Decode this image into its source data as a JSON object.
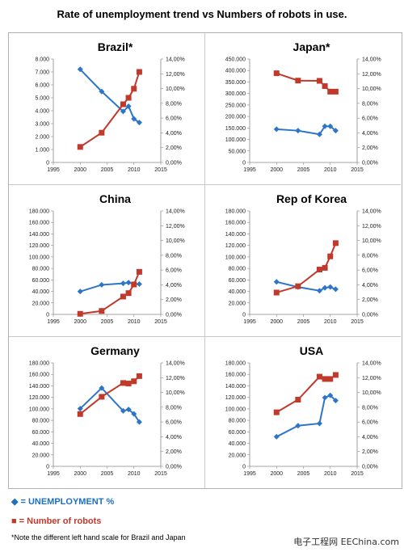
{
  "title": "Rate of unemployment trend vs Numbers of robots in use.",
  "legend": {
    "unemployment_symbol": "◆",
    "unemployment_label": "= UNEMPLOYMENT %",
    "robots_symbol": "■",
    "robots_label": "= Number of robots"
  },
  "footnote": "*Note the different left hand scale for Brazil and Japan",
  "watermark": "电子工程网  EEChina.com",
  "colors": {
    "unemployment": "#2e75c9",
    "robots": "#c0392b"
  },
  "chart_data": [
    {
      "type": "line",
      "title": "Brazil*",
      "x_ticks": [
        "1995",
        "2000",
        "2005",
        "2010",
        "2015"
      ],
      "xlim": [
        1995,
        2015
      ],
      "left_ticks": [
        "0",
        "1.000",
        "2.000",
        "3.000",
        "4.000",
        "5.000",
        "6.000",
        "7.000",
        "8.000"
      ],
      "left_lim": [
        0,
        8000
      ],
      "right_ticks": [
        "0,00%",
        "2,00%",
        "4,00%",
        "6,00%",
        "8,00%",
        "10,00%",
        "12,00%",
        "14,00%"
      ],
      "right_lim": [
        0,
        14
      ],
      "series": [
        {
          "key": "unemployment",
          "axis": "right",
          "x": [
            2000,
            2004,
            2008,
            2009,
            2010,
            2011
          ],
          "y": [
            12.6,
            9.6,
            6.9,
            7.6,
            5.9,
            5.4
          ]
        },
        {
          "key": "robots",
          "axis": "left",
          "x": [
            2000,
            2004,
            2008,
            2009,
            2010,
            2011
          ],
          "y": [
            1200,
            2300,
            4500,
            5000,
            5700,
            7000
          ]
        }
      ]
    },
    {
      "type": "line",
      "title": "Japan*",
      "x_ticks": [
        "1995",
        "2000",
        "2005",
        "2010",
        "2015"
      ],
      "xlim": [
        1995,
        2015
      ],
      "left_ticks": [
        "0",
        "50.000",
        "100.000",
        "150.000",
        "200.000",
        "250.000",
        "300.000",
        "350.000",
        "400.000",
        "450.000"
      ],
      "left_lim": [
        0,
        450000
      ],
      "right_ticks": [
        "0,00%",
        "2,00%",
        "4,00%",
        "6,00%",
        "8,00%",
        "10,00%",
        "12,00%",
        "14,00%"
      ],
      "right_lim": [
        0,
        14
      ],
      "series": [
        {
          "key": "unemployment",
          "axis": "right",
          "x": [
            2000,
            2004,
            2008,
            2009,
            2010,
            2011
          ],
          "y": [
            4.5,
            4.3,
            3.8,
            4.9,
            4.9,
            4.3
          ]
        },
        {
          "key": "robots",
          "axis": "left",
          "x": [
            2000,
            2004,
            2008,
            2009,
            2010,
            2011
          ],
          "y": [
            388000,
            356000,
            355000,
            332000,
            308000,
            308000
          ]
        }
      ]
    },
    {
      "type": "line",
      "title": "China",
      "x_ticks": [
        "1995",
        "2000",
        "2005",
        "2010",
        "2015"
      ],
      "xlim": [
        1995,
        2015
      ],
      "left_ticks": [
        "0",
        "20.000",
        "40.000",
        "60.000",
        "80.000",
        "100.000",
        "120.000",
        "140.000",
        "160.000",
        "180.000"
      ],
      "left_lim": [
        0,
        180000
      ],
      "right_ticks": [
        "0,00%",
        "2,00%",
        "4,00%",
        "6,00%",
        "8,00%",
        "10,00%",
        "12,00%",
        "14,00%"
      ],
      "right_lim": [
        0,
        14
      ],
      "series": [
        {
          "key": "unemployment",
          "axis": "right",
          "x": [
            2000,
            2004,
            2008,
            2009,
            2010,
            2011
          ],
          "y": [
            3.1,
            4.0,
            4.2,
            4.3,
            4.1,
            4.1
          ]
        },
        {
          "key": "robots",
          "axis": "left",
          "x": [
            2000,
            2004,
            2008,
            2009,
            2010,
            2011
          ],
          "y": [
            1000,
            6000,
            31000,
            37000,
            52000,
            74000
          ]
        }
      ]
    },
    {
      "type": "line",
      "title": "Rep of Korea",
      "x_ticks": [
        "1995",
        "2000",
        "2005",
        "2010",
        "2015"
      ],
      "xlim": [
        1995,
        2015
      ],
      "left_ticks": [
        "0",
        "20.000",
        "40.000",
        "60.000",
        "80.000",
        "100.000",
        "120.000",
        "140.000",
        "160.000",
        "180.000"
      ],
      "left_lim": [
        0,
        180000
      ],
      "right_ticks": [
        "0,00%",
        "2,00%",
        "4,00%",
        "6,00%",
        "8,00%",
        "10,00%",
        "12,00%",
        "14,00%"
      ],
      "right_lim": [
        0,
        14
      ],
      "series": [
        {
          "key": "unemployment",
          "axis": "right",
          "x": [
            2000,
            2004,
            2008,
            2009,
            2010,
            2011
          ],
          "y": [
            4.4,
            3.7,
            3.2,
            3.6,
            3.7,
            3.4
          ]
        },
        {
          "key": "robots",
          "axis": "left",
          "x": [
            2000,
            2004,
            2008,
            2009,
            2010,
            2011
          ],
          "y": [
            38000,
            49000,
            78000,
            81000,
            101000,
            124000
          ]
        }
      ]
    },
    {
      "type": "line",
      "title": "Germany",
      "x_ticks": [
        "1995",
        "2000",
        "2005",
        "2010",
        "2015"
      ],
      "xlim": [
        1995,
        2015
      ],
      "left_ticks": [
        "0",
        "20.000",
        "40.000",
        "60.000",
        "80.000",
        "100.000",
        "120.000",
        "140.000",
        "160.000",
        "180.000"
      ],
      "left_lim": [
        0,
        180000
      ],
      "right_ticks": [
        "0,00%",
        "2,00%",
        "4,00%",
        "6,00%",
        "8,00%",
        "10,00%",
        "12,00%",
        "14,00%"
      ],
      "right_lim": [
        0,
        14
      ],
      "series": [
        {
          "key": "unemployment",
          "axis": "right",
          "x": [
            2000,
            2004,
            2008,
            2009,
            2010,
            2011
          ],
          "y": [
            7.8,
            10.6,
            7.5,
            7.7,
            7.1,
            6.0
          ]
        },
        {
          "key": "robots",
          "axis": "left",
          "x": [
            2000,
            2004,
            2008,
            2009,
            2010,
            2011
          ],
          "y": [
            91000,
            121000,
            145000,
            144000,
            148000,
            157000
          ]
        }
      ]
    },
    {
      "type": "line",
      "title": "USA",
      "x_ticks": [
        "1995",
        "2000",
        "2005",
        "2010",
        "2015"
      ],
      "xlim": [
        1995,
        2015
      ],
      "left_ticks": [
        "0",
        "20.000",
        "40.000",
        "60.000",
        "80.000",
        "100.000",
        "120.000",
        "140.000",
        "160.000",
        "180.000"
      ],
      "left_lim": [
        0,
        180000
      ],
      "right_ticks": [
        "0,00%",
        "2,00%",
        "4,00%",
        "6,00%",
        "8,00%",
        "10,00%",
        "12,00%",
        "14,00%"
      ],
      "right_lim": [
        0,
        14
      ],
      "series": [
        {
          "key": "unemployment",
          "axis": "right",
          "x": [
            2000,
            2004,
            2008,
            2009,
            2010,
            2011
          ],
          "y": [
            4.0,
            5.5,
            5.8,
            9.3,
            9.6,
            8.9
          ]
        },
        {
          "key": "robots",
          "axis": "left",
          "x": [
            2000,
            2004,
            2008,
            2009,
            2010,
            2011
          ],
          "y": [
            94000,
            116000,
            156000,
            152000,
            152000,
            159000
          ]
        }
      ]
    }
  ]
}
